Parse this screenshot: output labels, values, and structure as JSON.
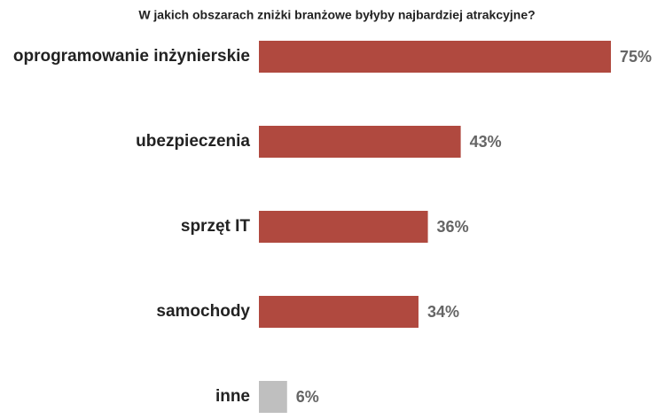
{
  "chart_data": {
    "type": "bar",
    "orientation": "horizontal",
    "title": "W jakich obszarach zniżki branżowe byłyby najbardziej atrakcyjne?",
    "categories": [
      "oprogramowanie inżynierskie",
      "ubezpieczenia",
      "sprzęt IT",
      "samochody",
      "inne"
    ],
    "values": [
      75,
      43,
      36,
      34,
      6
    ],
    "value_labels": [
      "75%",
      "43%",
      "36%",
      "34%",
      "6%"
    ],
    "colors": [
      "#b0493f",
      "#b0493f",
      "#b0493f",
      "#b0493f",
      "#bfbfbf"
    ]
  }
}
